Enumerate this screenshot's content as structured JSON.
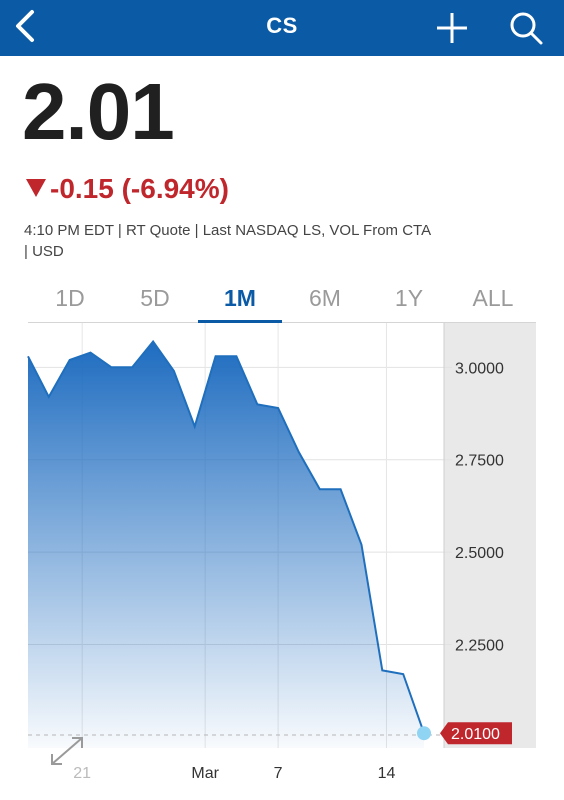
{
  "header": {
    "title": "CS",
    "back_icon": "chevron-left-icon",
    "add_icon": "plus-icon",
    "search_icon": "search-icon",
    "background_color": "#0a5aa6"
  },
  "quote": {
    "price": "2.01",
    "change": "-0.15 (-6.94%)",
    "direction_icon": "down-triangle-icon",
    "change_color": "#c0272d",
    "info_line1": "4:10 PM EDT | RT Quote | Last NASDAQ LS, VOL From CTA",
    "info_line2": "| USD"
  },
  "tabs": [
    {
      "label": "1D",
      "active": false
    },
    {
      "label": "5D",
      "active": false
    },
    {
      "label": "1M",
      "active": true
    },
    {
      "label": "6M",
      "active": false
    },
    {
      "label": "1Y",
      "active": false
    },
    {
      "label": "ALL",
      "active": false
    }
  ],
  "chart_data": {
    "type": "area",
    "x": [
      "Feb 17",
      "Feb 18",
      "Feb 19",
      "Feb 22",
      "Feb 23",
      "Feb 24",
      "Feb 25",
      "Feb 28",
      "Mar 1",
      "Mar 2",
      "Mar 3",
      "Mar 4",
      "Mar 7",
      "Mar 8",
      "Mar 9",
      "Mar 10",
      "Mar 11",
      "Mar 14",
      "Mar 15",
      "Mar 16"
    ],
    "values": [
      3.03,
      2.92,
      3.02,
      3.04,
      3.0,
      3.0,
      3.07,
      2.99,
      2.84,
      3.03,
      3.03,
      2.9,
      2.89,
      2.77,
      2.67,
      2.67,
      2.52,
      2.18,
      2.17,
      2.01
    ],
    "x_tick_labels": [
      "21",
      "Mar",
      "7",
      "14"
    ],
    "y_tick_labels": [
      "3.0000",
      "2.7500",
      "2.5000",
      "2.2500"
    ],
    "ylim": [
      1.97,
      3.12
    ],
    "last_value_label": "2.0100",
    "last_value_badge_color": "#c0272d",
    "line_color": "#1f6fbd",
    "grid": true
  },
  "footer": {
    "expand_icon": "expand-arrows-icon"
  }
}
